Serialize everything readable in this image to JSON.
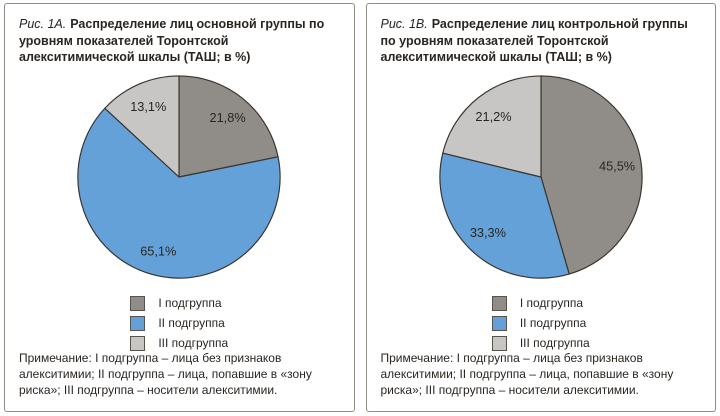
{
  "panels": [
    {
      "figure_label": "Рис. 1А.",
      "title_text": "Распределение лиц основной группы по уровням показателей Торонтской алекситимической шкалы (ТАШ; в %)",
      "note": "Примечание: I подгруппа – лица без признаков алекситимии; II подгруппа – лица, попавшие в «зону риска»; III подгруппа – носители алекситимии."
    },
    {
      "figure_label": "Рис. 1В.",
      "title_text": "Распределение лиц контрольной группы по уровням показателей Торонтской алекситимической шкалы (ТАШ; в %)",
      "note": "Примечание: I подгруппа – лица без признаков алекситимии; II подгруппа – лица, попавшие в «зону риска»; III подгруппа – носители алекситимии."
    }
  ],
  "chart_data": [
    {
      "type": "pie",
      "title": "Рис. 1А. Распределение лиц основной группы по уровням показателей Торонтской алекситимической шкалы (ТАШ; в %)",
      "labels": [
        "I подгруппа",
        "II подгруппа",
        "III подгруппа"
      ],
      "values": [
        21.8,
        65.1,
        13.1
      ],
      "value_labels": [
        "21,8%",
        "65,1%",
        "13,1%"
      ],
      "colors": [
        "#908d89",
        "#64a1d8",
        "#c7c6c4"
      ],
      "start_angle_deg": 0,
      "direction": "clockwise",
      "legend_position": "below"
    },
    {
      "type": "pie",
      "title": "Рис. 1В. Распределение лиц контрольной группы по уровням показателей Торонтской алекситимической шкалы (ТАШ; в %)",
      "labels": [
        "I подгруппа",
        "II подгруппа",
        "III подгруппа"
      ],
      "values": [
        45.5,
        33.3,
        21.2
      ],
      "value_labels": [
        "45,5%",
        "33,3%",
        "21,2%"
      ],
      "colors": [
        "#908d89",
        "#64a1d8",
        "#c7c6c4"
      ],
      "start_angle_deg": 0,
      "direction": "clockwise",
      "legend_position": "below"
    }
  ],
  "style": {
    "slice_stroke": "#3a342e",
    "text_color": "#2a2520",
    "panel_border": "#8e8c83",
    "swatch_border": "#56524c"
  }
}
